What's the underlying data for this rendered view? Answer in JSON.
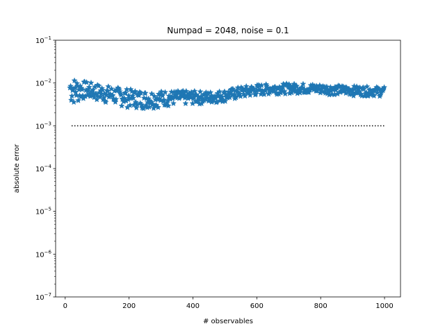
{
  "chart_data": {
    "type": "scatter",
    "title": "Numpad = 2048, noise = 0.1",
    "xlabel": "# observables",
    "ylabel": "absolute error",
    "xlim": [
      -30,
      1050
    ],
    "ylim": [
      1e-07,
      0.1
    ],
    "yscale": "log",
    "grid": false,
    "xticks": [
      0,
      200,
      400,
      600,
      800,
      1000
    ],
    "xtick_labels": [
      "0",
      "200",
      "400",
      "600",
      "800",
      "1000"
    ],
    "yticks": [
      1e-07,
      1e-06,
      1e-05,
      0.0001,
      0.001,
      0.01,
      0.1
    ],
    "ytick_labels": [
      {
        "base": "10",
        "exp": "−7"
      },
      {
        "base": "10",
        "exp": "−6"
      },
      {
        "base": "10",
        "exp": "−5"
      },
      {
        "base": "10",
        "exp": "−4"
      },
      {
        "base": "10",
        "exp": "−3"
      },
      {
        "base": "10",
        "exp": "−2"
      },
      {
        "base": "10",
        "exp": "−1"
      }
    ],
    "series": [
      {
        "marker": "star",
        "color": "#1f77b4",
        "x_range": [
          15,
          1000
        ],
        "upper_envelope": [
          [
            15,
            0.016
          ],
          [
            30,
            0.013
          ],
          [
            60,
            0.011
          ],
          [
            100,
            0.0095
          ],
          [
            150,
            0.0082
          ],
          [
            200,
            0.0072
          ],
          [
            250,
            0.0066
          ],
          [
            300,
            0.0066
          ],
          [
            350,
            0.0066
          ],
          [
            400,
            0.0065
          ],
          [
            450,
            0.0063
          ],
          [
            500,
            0.0068
          ],
          [
            550,
            0.0082
          ],
          [
            600,
            0.0092
          ],
          [
            650,
            0.0095
          ],
          [
            700,
            0.0097
          ],
          [
            750,
            0.0097
          ],
          [
            800,
            0.0093
          ],
          [
            850,
            0.0088
          ],
          [
            900,
            0.0085
          ],
          [
            950,
            0.0082
          ],
          [
            1000,
            0.008
          ]
        ],
        "lower_envelope": [
          [
            15,
            0.003
          ],
          [
            30,
            0.0029
          ],
          [
            60,
            0.0041
          ],
          [
            100,
            0.0036
          ],
          [
            150,
            0.003
          ],
          [
            200,
            0.0026
          ],
          [
            250,
            0.0024
          ],
          [
            300,
            0.0027
          ],
          [
            350,
            0.0029
          ],
          [
            400,
            0.0031
          ],
          [
            450,
            0.0032
          ],
          [
            500,
            0.0036
          ],
          [
            550,
            0.0042
          ],
          [
            600,
            0.0049
          ],
          [
            650,
            0.0054
          ],
          [
            700,
            0.0056
          ],
          [
            750,
            0.0056
          ],
          [
            800,
            0.0054
          ],
          [
            850,
            0.0052
          ],
          [
            900,
            0.005
          ],
          [
            950,
            0.0049
          ],
          [
            1000,
            0.0048
          ]
        ]
      }
    ],
    "reference_line": {
      "y": 0.001,
      "x_range": [
        20,
        1000
      ],
      "style": "dotted",
      "color": "#000000"
    }
  }
}
